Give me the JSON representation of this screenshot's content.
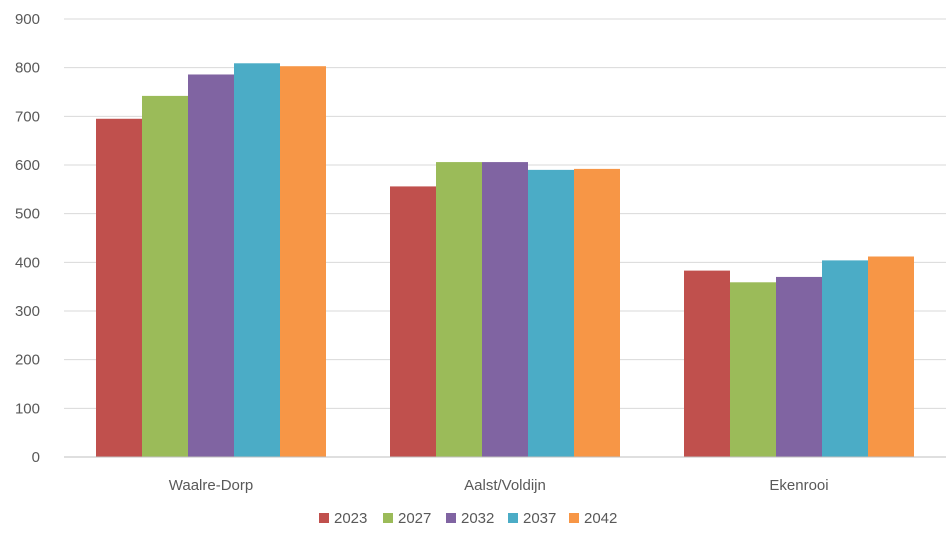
{
  "chart_data": {
    "type": "bar",
    "title": "",
    "xlabel": "",
    "ylabel": "",
    "categories": [
      "Waalre-Dorp",
      "Aalst/Voldijn",
      "Ekenrooi"
    ],
    "series": [
      {
        "name": "2023",
        "color": "#C0504D",
        "values": [
          695,
          556,
          383
        ]
      },
      {
        "name": "2027",
        "color": "#9BBB59",
        "values": [
          742,
          606,
          359
        ]
      },
      {
        "name": "2032",
        "color": "#8064A2",
        "values": [
          786,
          606,
          370
        ]
      },
      {
        "name": "2037",
        "color": "#4BACC6",
        "values": [
          809,
          590,
          404
        ]
      },
      {
        "name": "2042",
        "color": "#F79646",
        "values": [
          803,
          592,
          412
        ]
      }
    ],
    "ylim": [
      0,
      900
    ],
    "yticks": [
      0,
      100,
      200,
      300,
      400,
      500,
      600,
      700,
      800,
      900
    ],
    "grid": true,
    "legend_position": "bottom"
  }
}
